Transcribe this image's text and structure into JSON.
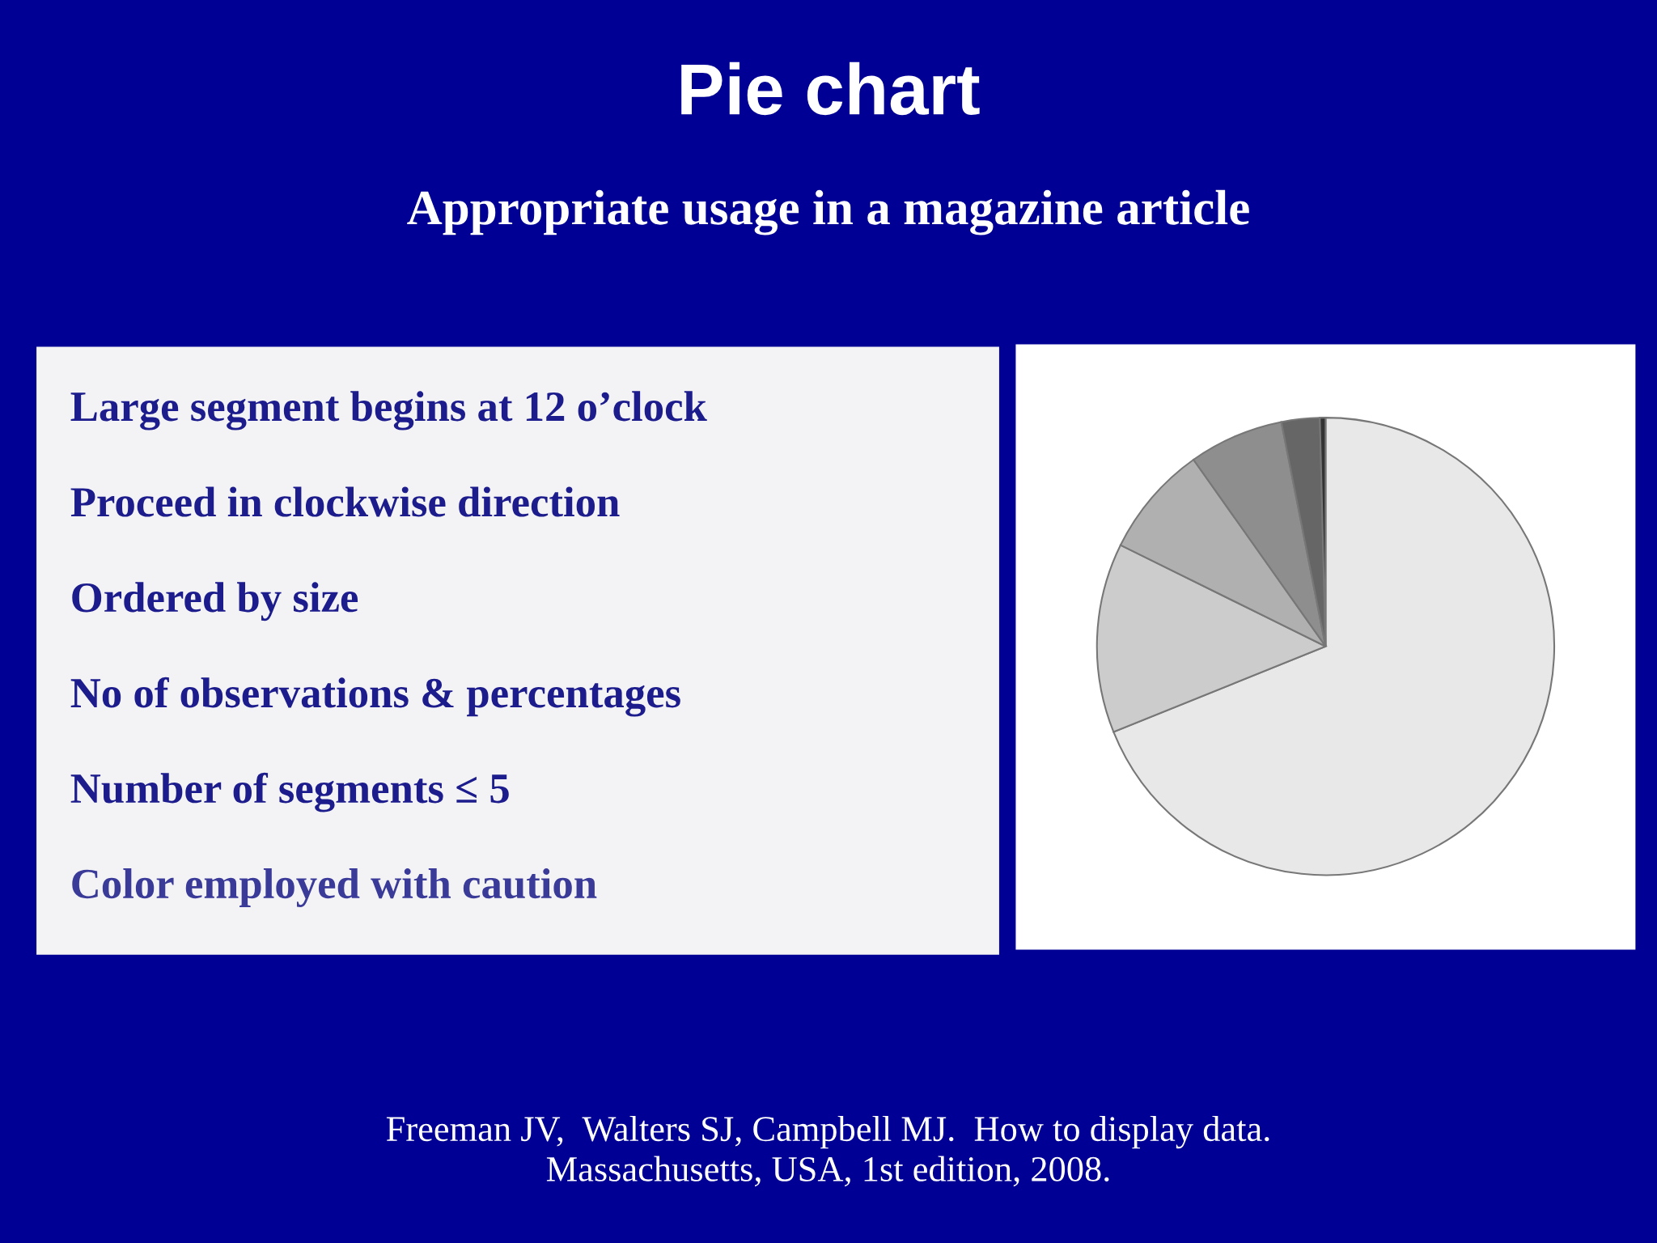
{
  "chart_data": [
    {
      "type": "other",
      "annotations": [
        "Large segment begins at 12 o’clock",
        "Proceed in clockwise direction",
        "Ordered by size",
        "No of observations & percentages",
        "Number of segments ≤ 5",
        "Color employed with caution"
      ]
    },
    {
      "type": "pie",
      "title": "Pie chart",
      "subtitle": "Appropriate usage in a magazine article",
      "categories": [
        null,
        null,
        null,
        null,
        null,
        null
      ],
      "values": [
        68.9,
        13.4,
        7.9,
        6.7,
        2.7,
        0.4
      ],
      "colors": [
        "#e8e8e8",
        "#cccccc",
        "#b0b0b0",
        "#8e8e8e",
        "#666666",
        "#333333"
      ],
      "annotations": [
        "Freeman JV,  Walters SJ, Campbell MJ.  How to display data.\nMassachusetts, USA, 1st edition, 2008."
      ]
    }
  ]
}
